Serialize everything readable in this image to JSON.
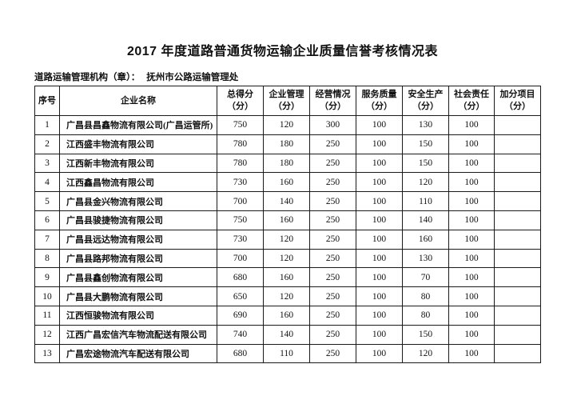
{
  "page": {
    "title": "2017 年度道路普通货物运输企业质量信誉考核情况表",
    "agency_label": "道路运输管理机构（章）：",
    "agency_value": "抚州市公路运输管理处"
  },
  "table": {
    "columns": [
      {
        "key": "no",
        "title": "序号",
        "sub": ""
      },
      {
        "key": "name",
        "title": "企业名称",
        "sub": ""
      },
      {
        "key": "total",
        "title": "总得分",
        "sub": "（分）"
      },
      {
        "key": "mgmt",
        "title": "企业管理",
        "sub": "（分）"
      },
      {
        "key": "ops",
        "title": "经营情况",
        "sub": "（分）"
      },
      {
        "key": "service",
        "title": "服务质量",
        "sub": "（分）"
      },
      {
        "key": "safety",
        "title": "安全生产",
        "sub": "（分）"
      },
      {
        "key": "social",
        "title": "社会责任",
        "sub": "（分）"
      },
      {
        "key": "bonus",
        "title": "加分项目",
        "sub": "（分）"
      }
    ],
    "rows": [
      {
        "no": "1",
        "name": "广昌县昌鑫物流有限公司(广昌运管所)",
        "total": "750",
        "mgmt": "120",
        "ops": "300",
        "service": "100",
        "safety": "130",
        "social": "100",
        "bonus": ""
      },
      {
        "no": "2",
        "name": "江西盛丰物流有限公司",
        "total": "780",
        "mgmt": "180",
        "ops": "250",
        "service": "100",
        "safety": "150",
        "social": "100",
        "bonus": ""
      },
      {
        "no": "3",
        "name": "江西新丰物流有限公司",
        "total": "780",
        "mgmt": "180",
        "ops": "250",
        "service": "100",
        "safety": "150",
        "social": "100",
        "bonus": ""
      },
      {
        "no": "4",
        "name": "江西鑫昌物流有限公司",
        "total": "730",
        "mgmt": "160",
        "ops": "250",
        "service": "100",
        "safety": "120",
        "social": "100",
        "bonus": ""
      },
      {
        "no": "5",
        "name": "广昌县金兴物流有限公司",
        "total": "700",
        "mgmt": "140",
        "ops": "250",
        "service": "100",
        "safety": "110",
        "social": "100",
        "bonus": ""
      },
      {
        "no": "6",
        "name": "广昌县骏捷物流有限公司",
        "total": "750",
        "mgmt": "160",
        "ops": "250",
        "service": "100",
        "safety": "140",
        "social": "100",
        "bonus": ""
      },
      {
        "no": "7",
        "name": "广昌县远达物流有限公司",
        "total": "730",
        "mgmt": "120",
        "ops": "250",
        "service": "100",
        "safety": "160",
        "social": "100",
        "bonus": ""
      },
      {
        "no": "8",
        "name": "广昌县路邦物流有限公司",
        "total": "700",
        "mgmt": "120",
        "ops": "250",
        "service": "100",
        "safety": "130",
        "social": "100",
        "bonus": ""
      },
      {
        "no": "9",
        "name": "广昌县鑫创物流有限公司",
        "total": "680",
        "mgmt": "160",
        "ops": "250",
        "service": "100",
        "safety": "70",
        "social": "100",
        "bonus": ""
      },
      {
        "no": "10",
        "name": "广昌县大鹏物流有限公司",
        "total": "650",
        "mgmt": "120",
        "ops": "250",
        "service": "100",
        "safety": "80",
        "social": "100",
        "bonus": ""
      },
      {
        "no": "11",
        "name": "江西恒骏物流有限公司",
        "total": "690",
        "mgmt": "160",
        "ops": "250",
        "service": "100",
        "safety": "80",
        "social": "100",
        "bonus": ""
      },
      {
        "no": "12",
        "name": "江西广昌宏信汽车物流配送有限公司",
        "total": "740",
        "mgmt": "140",
        "ops": "250",
        "service": "100",
        "safety": "150",
        "social": "100",
        "bonus": ""
      },
      {
        "no": "13",
        "name": "广昌宏途物流汽车配送有限公司",
        "total": "680",
        "mgmt": "110",
        "ops": "250",
        "service": "100",
        "safety": "120",
        "social": "100",
        "bonus": ""
      }
    ]
  }
}
